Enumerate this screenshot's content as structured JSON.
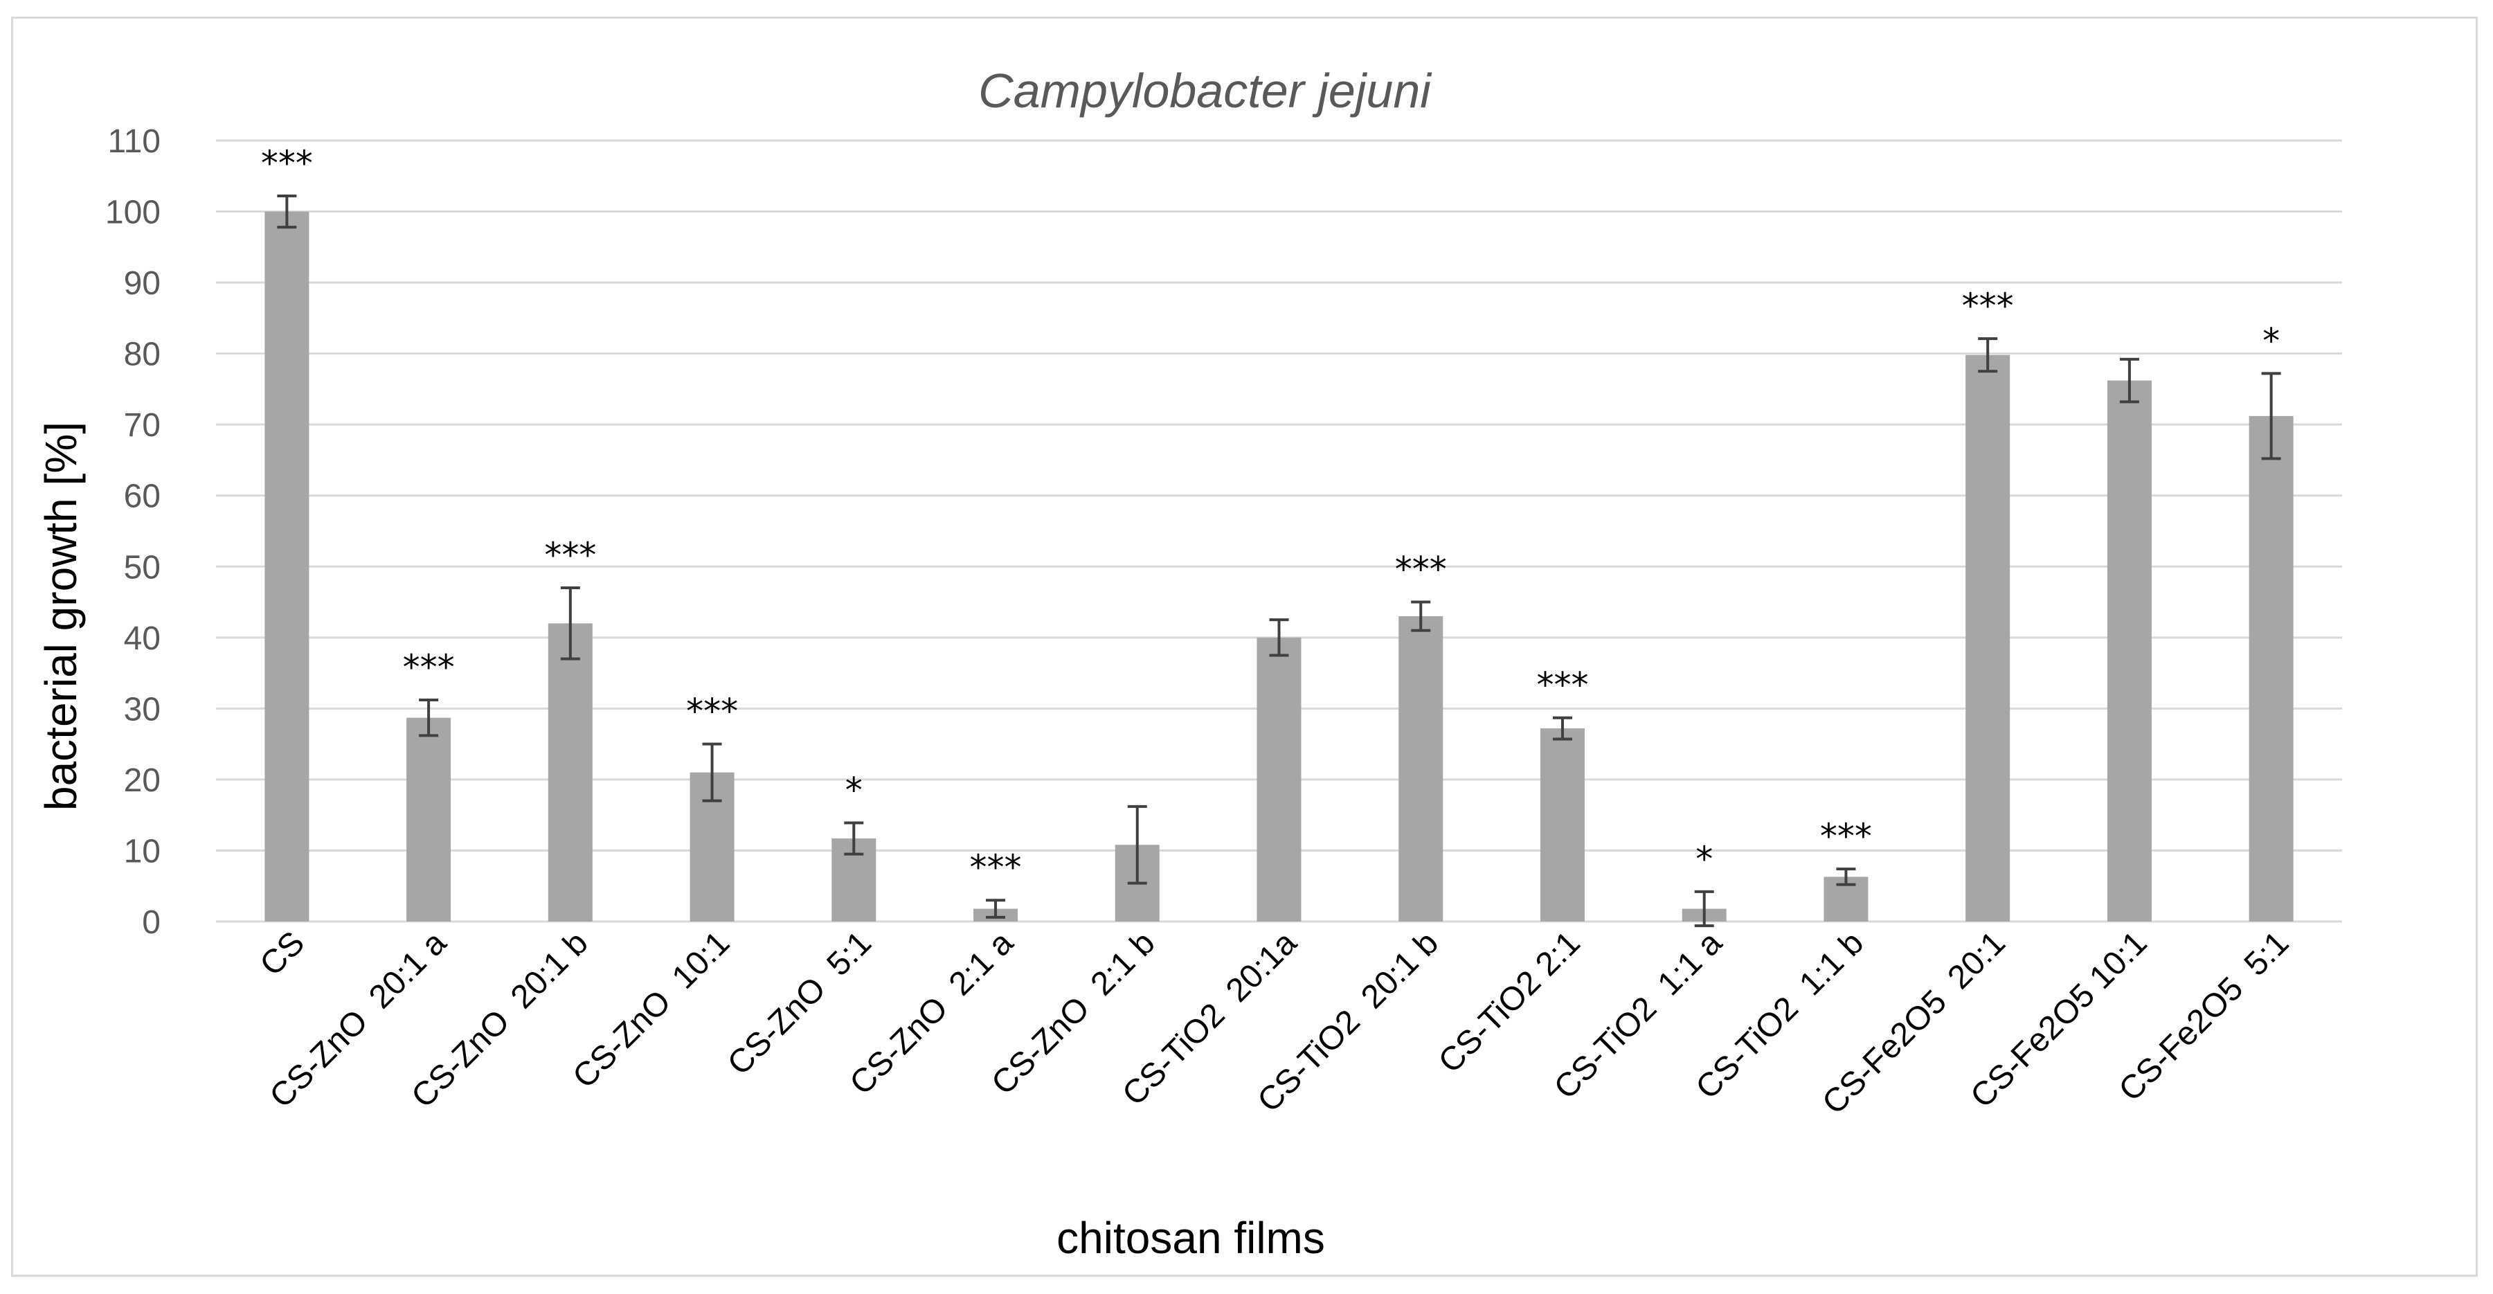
{
  "chart_data": {
    "type": "bar",
    "title": "Campylobacter jejuni",
    "xlabel": "chitosan films",
    "ylabel": "bacterial growth [%]",
    "ylim": [
      0,
      110
    ],
    "yticks": [
      0,
      10,
      20,
      30,
      40,
      50,
      60,
      70,
      80,
      90,
      100,
      110
    ],
    "grid": true,
    "categories": [
      "CS",
      "CS-ZnO  20:1 a",
      "CS-ZnO  20:1 b",
      "CS-ZnO  10:1",
      "CS-ZnO  5:1",
      "CS-ZnO  2:1 a",
      "CS-ZnO  2:1 b",
      "CS-TiO2  20:1a",
      "CS-TiO2  20:1 b",
      "CS-TiO2 2:1",
      "CS-TiO2  1:1 a",
      "CS-TiO2  1:1 b",
      "CS-Fe2O5  20:1",
      "CS-Fe2O5 10:1",
      "CS-Fe2O5  5:1"
    ],
    "values": [
      100,
      28.7,
      42,
      21,
      11.7,
      1.8,
      10.8,
      40,
      43,
      27.2,
      1.8,
      6.3,
      79.8,
      76.2,
      71.2
    ],
    "errors": [
      2.2,
      2.5,
      5,
      4,
      2.2,
      1.2,
      5.4,
      2.5,
      2,
      1.5,
      2.4,
      1.1,
      2.3,
      3,
      6
    ],
    "significance": [
      "***",
      "***",
      "***",
      "***",
      "*",
      "***",
      "",
      "",
      "***",
      "***",
      "*",
      "***",
      "***",
      "",
      "*"
    ],
    "colors": {
      "bar": "#a6a6a6",
      "grid": "#d9d9d9",
      "errorbar": "#404040"
    }
  }
}
